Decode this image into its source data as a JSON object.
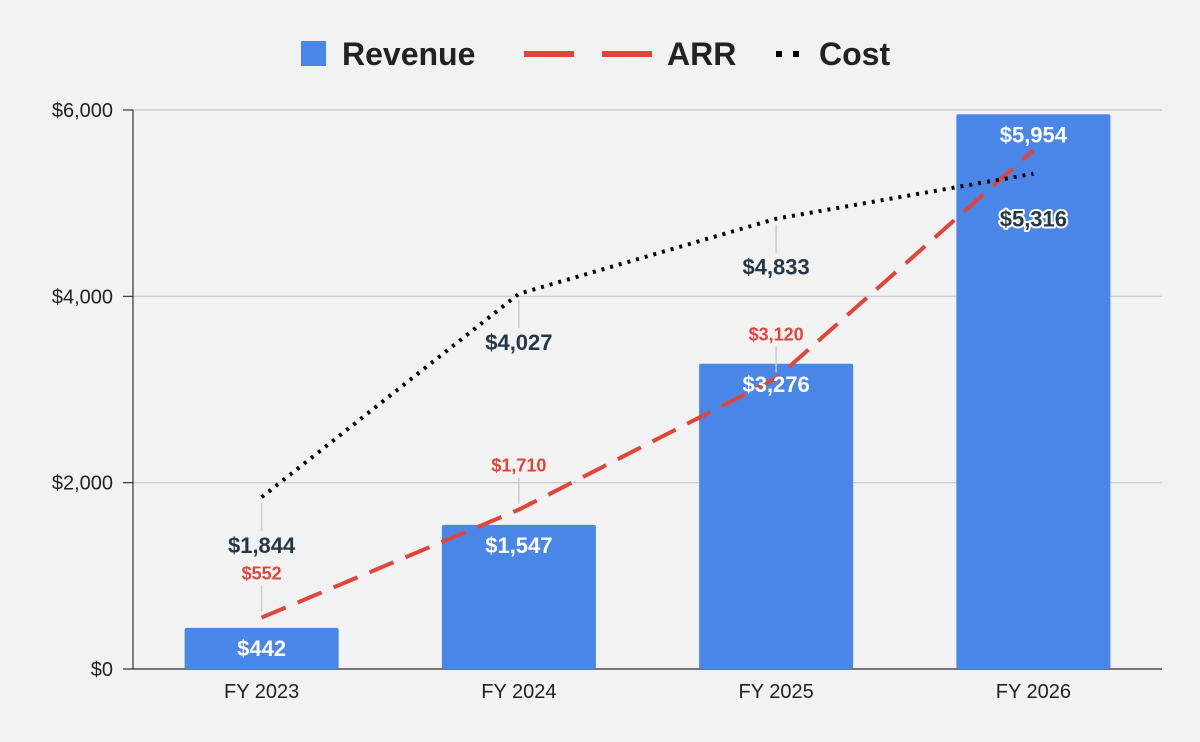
{
  "chart_data": {
    "type": "bar",
    "categories": [
      "FY 2023",
      "FY 2024",
      "FY 2025",
      "FY 2026"
    ],
    "series": [
      {
        "name": "Revenue",
        "kind": "bar",
        "color": "#4a86e8",
        "values": [
          442,
          1547,
          3276,
          5954
        ],
        "labels": [
          "$442",
          "$1,547",
          "$3,276",
          "$5,954"
        ]
      },
      {
        "name": "ARR",
        "kind": "line",
        "line_style": "dashed",
        "color": "#e0453a",
        "values": [
          552,
          1710,
          3120,
          5570
        ],
        "labels": [
          "$552",
          "$1,710",
          "$3,120",
          ""
        ]
      },
      {
        "name": "Cost",
        "kind": "line",
        "line_style": "dotted",
        "color": "#000000",
        "label_color": "#253746",
        "values": [
          1844,
          4027,
          4833,
          5316
        ],
        "labels": [
          "$1,844",
          "$4,027",
          "$4,833",
          "$5,316"
        ]
      }
    ],
    "y_ticks": [
      0,
      2000,
      4000,
      6000
    ],
    "y_tick_labels": [
      "$0",
      "$2,000",
      "$4,000",
      "$6,000"
    ],
    "ylim": [
      0,
      6000
    ],
    "grid": true,
    "legend_position": "top-center",
    "title": "",
    "xlabel": "",
    "ylabel": ""
  }
}
